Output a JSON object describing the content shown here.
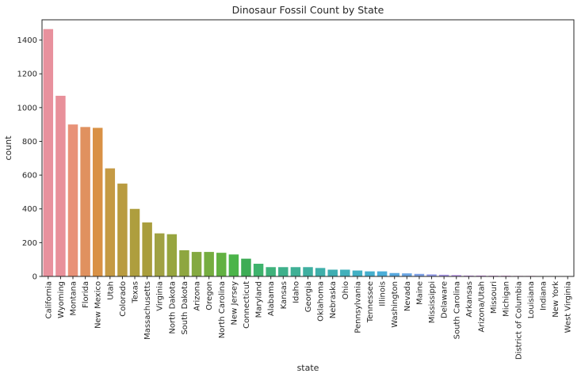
{
  "chart_data": {
    "type": "bar",
    "title": "Dinosaur Fossil Count by State",
    "xlabel": "state",
    "ylabel": "count",
    "ylim": [
      0,
      1520
    ],
    "yticks": [
      0,
      200,
      400,
      600,
      800,
      1000,
      1200,
      1400
    ],
    "grid": false,
    "categories": [
      "California",
      "Wyoming",
      "Montana",
      "Florida",
      "New Mexico",
      "Utah",
      "Colorado",
      "Texas",
      "Massachusetts",
      "Virginia",
      "North Dakota",
      "South Dakota",
      "Arizona",
      "Oregon",
      "North Carolina",
      "New Jersey",
      "Connecticut",
      "Maryland",
      "Alabama",
      "Kansas",
      "Idaho",
      "Georgia",
      "Oklahoma",
      "Nebraska",
      "Ohio",
      "Pennsylvania",
      "Tennessee",
      "Illinois",
      "Washington",
      "Nevada",
      "Maine",
      "Mississippi",
      "Delaware",
      "South Carolina",
      "Arkansas",
      "Arizona/Utah",
      "Missouri",
      "Michigan",
      "District of Columbia",
      "Louisiana",
      "Indiana",
      "New York",
      "West Virginia"
    ],
    "values": [
      1465,
      1070,
      900,
      885,
      880,
      640,
      550,
      400,
      320,
      255,
      250,
      155,
      145,
      145,
      140,
      130,
      105,
      75,
      55,
      55,
      55,
      55,
      50,
      40,
      40,
      35,
      30,
      30,
      20,
      18,
      15,
      12,
      10,
      8,
      5,
      5,
      4,
      4,
      3,
      3,
      2,
      1,
      1
    ],
    "colors": [
      "#e8919d",
      "#e8909a",
      "#e89278",
      "#e0915f",
      "#d99145",
      "#c59a44",
      "#b99b3f",
      "#ae9e3e",
      "#a99d3c",
      "#a0a143",
      "#97a53f",
      "#8ea640",
      "#84a940",
      "#75ad40",
      "#62b142",
      "#4bb449",
      "#3dac55",
      "#3eb36c",
      "#3fb27b",
      "#3eb08b",
      "#3fb095",
      "#3fafa0",
      "#3fafaa",
      "#3faeb2",
      "#41b0bb",
      "#42b0c3",
      "#45afcd",
      "#4baed8",
      "#57a8de",
      "#6aa5e1",
      "#7ea1e5",
      "#939be8",
      "#a896e8",
      "#b993e9",
      "#c58de9",
      "#d08ae8",
      "#d98de5",
      "#e286e3",
      "#e58bd8",
      "#e88ccc",
      "#e88bc0",
      "#e98db3",
      "#e98ea8"
    ]
  }
}
